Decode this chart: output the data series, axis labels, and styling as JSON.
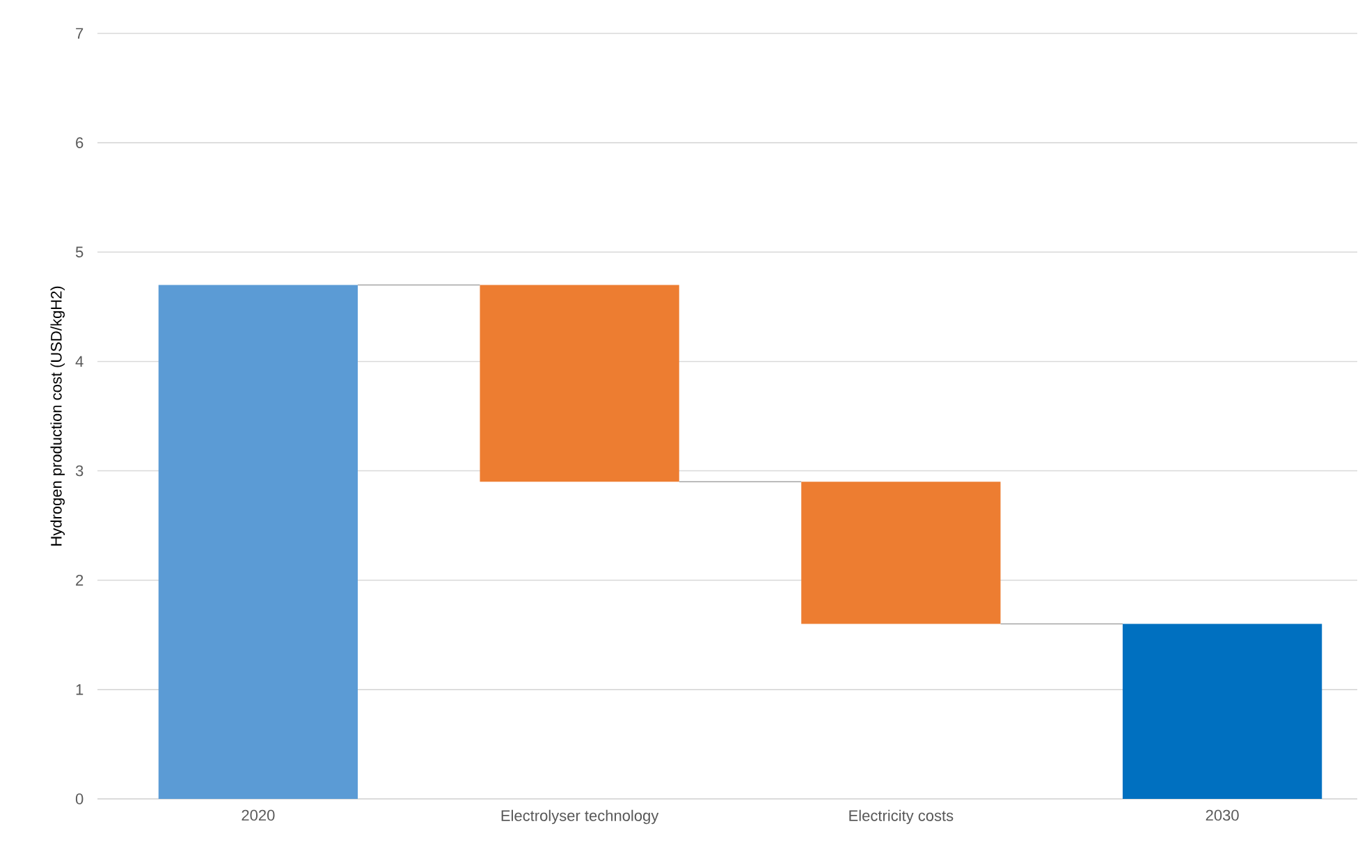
{
  "chart_data": {
    "type": "bar",
    "ylabel": "Hydrogen production cost (USD/kgH2)",
    "categories": [
      "2020",
      "Electrolyser technology",
      "Electricity costs",
      "2030"
    ],
    "values": [
      4.7,
      -1.8,
      -1.3,
      1.6
    ],
    "base": [
      0,
      4.7,
      2.9,
      0
    ],
    "colors": [
      "#5b9bd5",
      "#ed7d31",
      "#ed7d31",
      "#0070c0"
    ],
    "ylim": [
      0,
      7
    ],
    "yticks": [
      0,
      1,
      2,
      3,
      4,
      5,
      6,
      7
    ],
    "grid": "y"
  }
}
